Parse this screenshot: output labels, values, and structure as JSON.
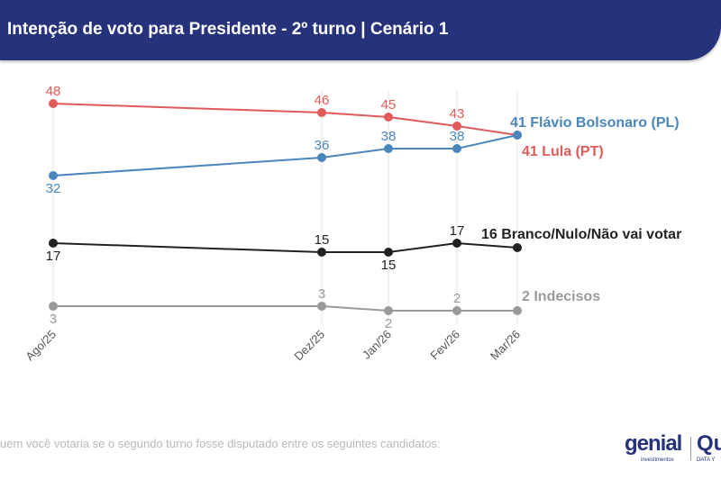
{
  "header": {
    "title": "Intenção de voto para Presidente - 2º turno | Cenário 1"
  },
  "footer": {
    "question": "uem você votaria se o segundo turno fosse disputado entre os seguintes candidatos:"
  },
  "logos": {
    "genial": "genial",
    "genial_sub": "investimentos",
    "quaest": "Qu",
    "quaest_sub": "DATA Y"
  },
  "chart_data": {
    "type": "line",
    "title": "Intenção de voto para Presidente - 2º turno | Cenário 1",
    "categories": [
      "Ago/25",
      "Dez/25",
      "Jan/26",
      "Fev/26",
      "Mar/26"
    ],
    "grid": "vertical",
    "series": [
      {
        "name": "Lula (PT)",
        "end_label": "41 Lula (PT)",
        "color": "#e05a5a",
        "values": [
          48,
          46,
          45,
          43,
          41
        ]
      },
      {
        "name": "Flávio Bolsonaro (PL)",
        "end_label": "41 Flávio Bolsonaro (PL)",
        "color": "#4a86bb",
        "values": [
          32,
          36,
          38,
          38,
          41
        ]
      },
      {
        "name": "Branco/Nulo/Não vai votar",
        "end_label": "16 Branco/Nulo/Não vai votar",
        "color": "#222222",
        "values": [
          17,
          15,
          15,
          17,
          16
        ]
      },
      {
        "name": "Indecisos",
        "end_label": "2 Indecisos",
        "color": "#9a9a9a",
        "values": [
          3,
          3,
          2,
          2,
          2
        ]
      }
    ]
  }
}
